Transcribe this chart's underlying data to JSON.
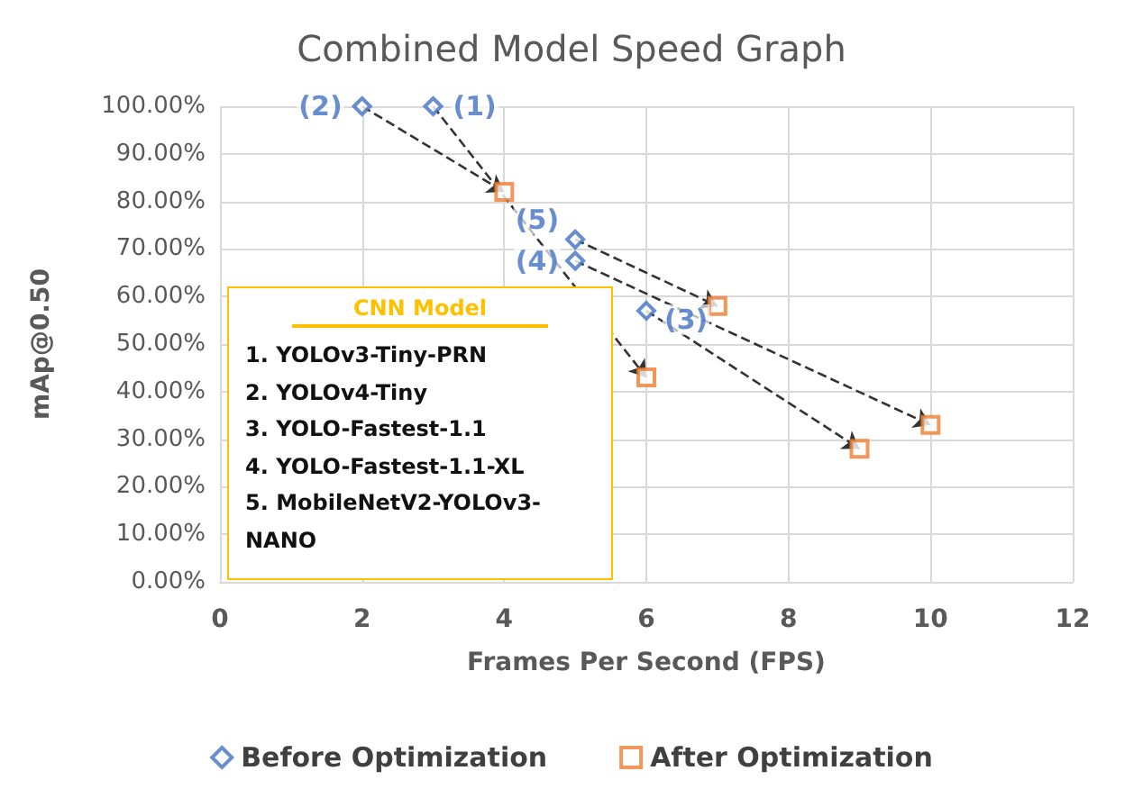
{
  "chart_data": {
    "type": "scatter",
    "title": "Combined Model Speed Graph",
    "xlabel": "Frames Per Second (FPS)",
    "ylabel": "mAp@0.50",
    "series": [
      {
        "name": "Before Optimization",
        "color": "#4472c4",
        "marker": "diamond",
        "x": [
          3,
          2,
          6,
          5,
          5
        ],
        "values": [
          100,
          100,
          57,
          67.5,
          72
        ]
      },
      {
        "name": "After Optimization",
        "color": "#ed7d31",
        "marker": "square",
        "x": [
          6,
          4,
          9,
          10,
          7
        ],
        "values": [
          43,
          82,
          28,
          33,
          58
        ]
      }
    ],
    "xlim": [
      0,
      12
    ],
    "xticks": [
      0,
      2,
      4,
      6,
      8,
      10,
      12
    ],
    "ylim": [
      0,
      100
    ],
    "yticks": [
      {
        "value": 0,
        "label": "0.00%"
      },
      {
        "value": 10,
        "label": "10.00%"
      },
      {
        "value": 20,
        "label": "20.00%"
      },
      {
        "value": 30,
        "label": "30.00%"
      },
      {
        "value": 40,
        "label": "40.00%"
      },
      {
        "value": 50,
        "label": "50.00%"
      },
      {
        "value": 60,
        "label": "60.00%"
      },
      {
        "value": 70,
        "label": "70.00%"
      },
      {
        "value": 80,
        "label": "80.00%"
      },
      {
        "value": 90,
        "label": "90.00%"
      },
      {
        "value": 100,
        "label": "100.00%"
      }
    ],
    "annotations": [
      {
        "text": "(1)",
        "x": 3,
        "y": 100
      },
      {
        "text": "(2)",
        "x": 2,
        "y": 100
      },
      {
        "text": "(3)",
        "x": 6,
        "y": 57
      },
      {
        "text": "(4)",
        "x": 5,
        "y": 67.5
      },
      {
        "text": "(5)",
        "x": 5,
        "y": 72
      },
      "CNN Model",
      "1. YOLOv3-Tiny-PRN",
      "2. YOLOv4-Tiny",
      "3. YOLO-Fastest-1.1",
      "4. YOLO-Fastest-1.1-XL",
      "5. MobileNetV2-YOLOv3-",
      "NANO"
    ],
    "grid": true,
    "legend": "bottom"
  }
}
